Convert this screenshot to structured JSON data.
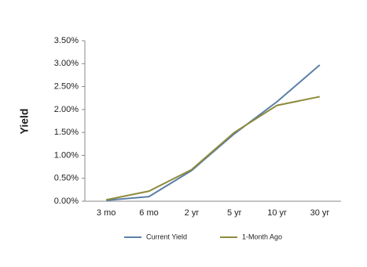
{
  "chart_data": {
    "type": "line",
    "y_label": "Yield",
    "categories": [
      "3 mo",
      "6 mo",
      "2 yr",
      "5 yr",
      "10 yr",
      "30 yr"
    ],
    "series": [
      {
        "name": "Current Yield",
        "color": "#5b7fa8",
        "values": [
          0.02,
          0.1,
          0.67,
          1.47,
          2.17,
          2.97
        ]
      },
      {
        "name": "1-Month Ago",
        "color": "#8c8a3c",
        "values": [
          0.03,
          0.22,
          0.69,
          1.5,
          2.09,
          2.28
        ]
      }
    ],
    "ylim": [
      0,
      3.5
    ],
    "yticks": [
      {
        "value": 0,
        "label": "0.00%"
      },
      {
        "value": 0.5,
        "label": "0.50%"
      },
      {
        "value": 1,
        "label": "1.00%"
      },
      {
        "value": 1.5,
        "label": "1.50%"
      },
      {
        "value": 2,
        "label": "2.00%"
      },
      {
        "value": 2.5,
        "label": "2.50%"
      },
      {
        "value": 3,
        "label": "3.00%"
      },
      {
        "value": 3.5,
        "label": "3.50%"
      }
    ],
    "grid": false,
    "legend": "bottom"
  }
}
